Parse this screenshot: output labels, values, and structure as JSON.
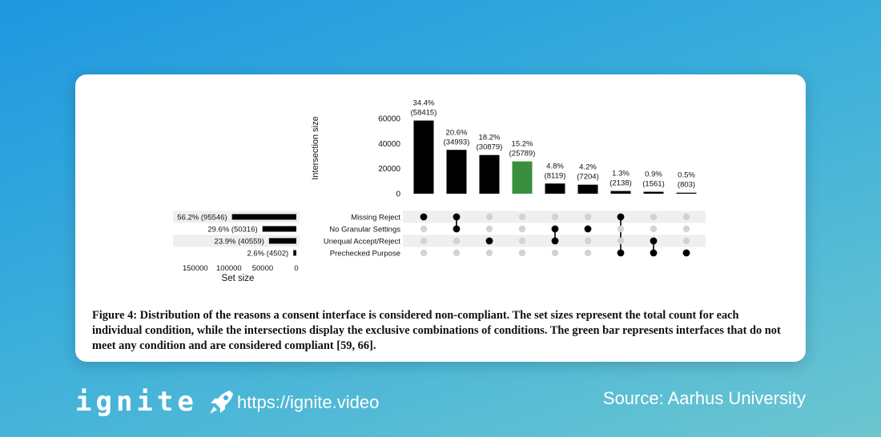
{
  "caption": "Figure 4: Distribution of the reasons a consent interface is considered non-compliant. The set sizes represent the total count for each individual condition, while the intersections display the exclusive combinations of conditions. The green bar represents interfaces that do not meet any condition and are considered compliant [59, 66].",
  "footer": {
    "logo_text": "ignite",
    "url": "https://ignite.video",
    "source": "Source: Aarhus University"
  },
  "colors": {
    "bar": "#000000",
    "highlight": "#3a8f3e",
    "dot_inactive": "#d3d3d3",
    "row_shade": "#efefef"
  },
  "chart_data": {
    "type": "upset",
    "intersection_axis": {
      "label": "Intersection size",
      "ticks": [
        0,
        20000,
        40000,
        60000
      ],
      "ylim": [
        0,
        62000
      ]
    },
    "set_axis": {
      "label": "Set size",
      "ticks": [
        150000,
        100000,
        50000,
        0
      ],
      "xlim": [
        0,
        170000
      ]
    },
    "sets": [
      {
        "name": "Missing Reject",
        "size": 95546,
        "label": "56.2% (95546)"
      },
      {
        "name": "No Granular Settings",
        "size": 50316,
        "label": "29.6% (50316)"
      },
      {
        "name": "Unequal Accept/Reject",
        "size": 40559,
        "label": "23.9% (40559)"
      },
      {
        "name": "Prechecked Purpose",
        "size": 4502,
        "label": "2.6% (4502)"
      }
    ],
    "intersections": [
      {
        "value": 58415,
        "pct": "34.4%",
        "count": "(58415)",
        "members": [
          0
        ],
        "highlight": false
      },
      {
        "value": 34993,
        "pct": "20.6%",
        "count": "(34993)",
        "members": [
          0,
          1
        ],
        "highlight": false
      },
      {
        "value": 30879,
        "pct": "18.2%",
        "count": "(30879)",
        "members": [
          2
        ],
        "highlight": false
      },
      {
        "value": 25789,
        "pct": "15.2%",
        "count": "(25789)",
        "members": [],
        "highlight": true
      },
      {
        "value": 8119,
        "pct": "4.8%",
        "count": "(8119)",
        "members": [
          1,
          2
        ],
        "highlight": false
      },
      {
        "value": 7204,
        "pct": "4.2%",
        "count": "(7204)",
        "members": [
          1
        ],
        "highlight": false
      },
      {
        "value": 2138,
        "pct": "1.3%",
        "count": "(2138)",
        "members": [
          0,
          3
        ],
        "highlight": false
      },
      {
        "value": 1561,
        "pct": "0.9%",
        "count": "(1561)",
        "members": [
          2,
          3
        ],
        "highlight": false
      },
      {
        "value": 803,
        "pct": "0.5%",
        "count": "(803)",
        "members": [
          3
        ],
        "highlight": false
      }
    ]
  }
}
